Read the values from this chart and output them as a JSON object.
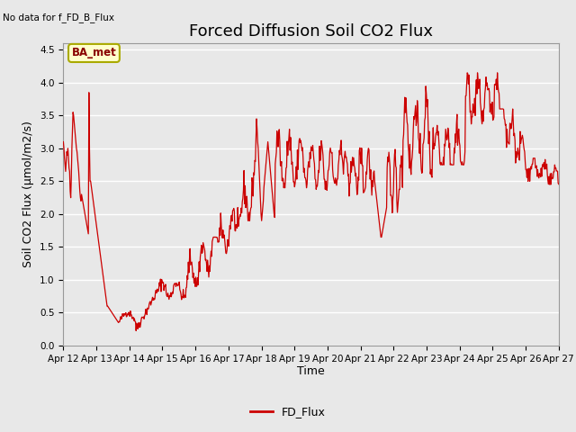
{
  "title": "Forced Diffusion Soil CO2 Flux",
  "top_left_text": "No data for f_FD_B_Flux",
  "ylabel": "Soil CO2 Flux (µmol/m2/s)",
  "xlabel": "Time",
  "legend_label": "FD_Flux",
  "legend_color": "#cc0000",
  "line_color": "#cc0000",
  "ba_met_label": "BA_met",
  "ba_met_facecolor": "#ffffcc",
  "ba_met_edgecolor": "#aaaa00",
  "ba_met_textcolor": "#880000",
  "ylim": [
    0.0,
    4.6
  ],
  "yticks": [
    0.0,
    0.5,
    1.0,
    1.5,
    2.0,
    2.5,
    3.0,
    3.5,
    4.0,
    4.5
  ],
  "background_color": "#e8e8e8",
  "plot_bg_color": "#e8e8e8",
  "grid_color": "#ffffff",
  "title_fontsize": 13,
  "axis_label_fontsize": 9,
  "tick_fontsize": 7.5,
  "x_start_day": 12,
  "x_end_day": 27,
  "x_tick_days": [
    12,
    13,
    14,
    15,
    16,
    17,
    18,
    19,
    20,
    21,
    22,
    23,
    24,
    25,
    26,
    27
  ]
}
